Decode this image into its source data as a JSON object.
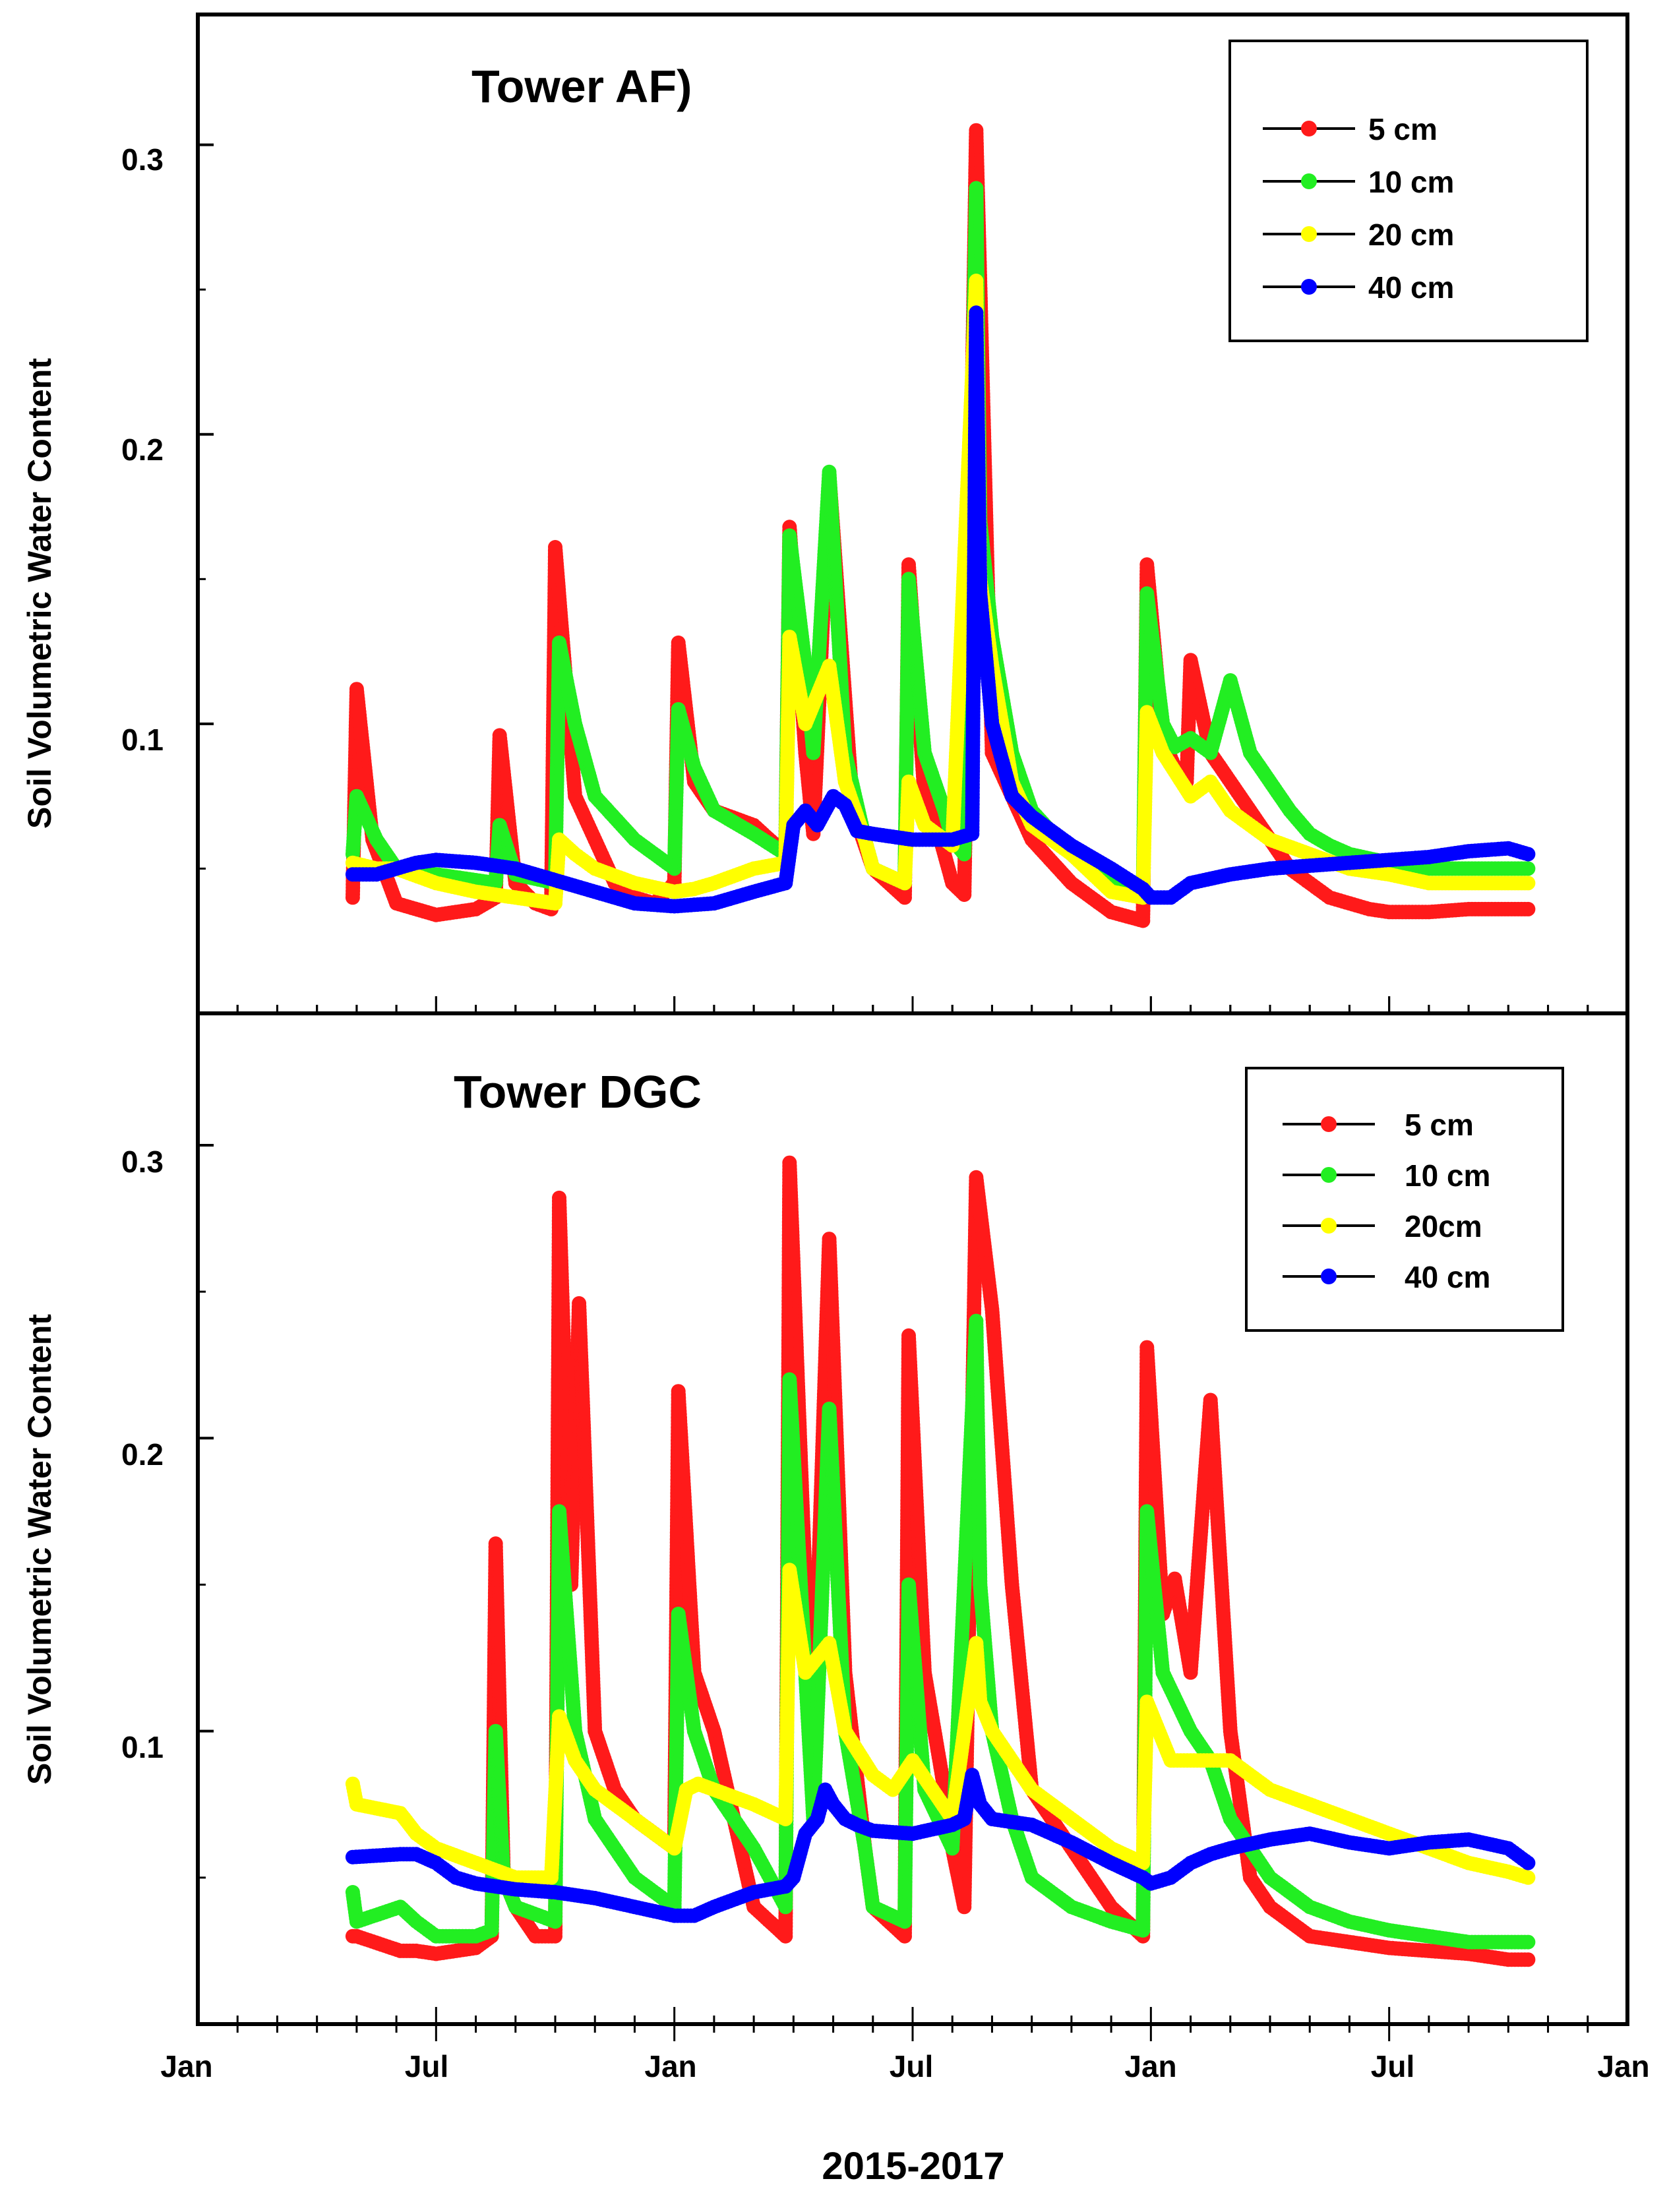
{
  "x_title": "2015-2017",
  "x_tick_labels": [
    "Jan",
    "Jul",
    "Jan",
    "Jul",
    "Jan",
    "Jul",
    "Jan"
  ],
  "colors": {
    "5cm": "#ff1a1a",
    "10cm": "#22ee22",
    "20cm": "#ffff00",
    "40cm": "#0000ff"
  },
  "chart_data": [
    {
      "type": "line",
      "title": "Tower AF)",
      "ylabel": "Soil Volumetric Water Content",
      "ylim": [
        0.0,
        0.345
      ],
      "yticks": [
        0.1,
        0.2,
        0.3
      ],
      "ytick_labels": [
        "0.1",
        "0.2",
        "0.3"
      ],
      "xlim": [
        0,
        36
      ],
      "xticks": [
        0,
        6,
        12,
        18,
        24,
        30,
        36
      ],
      "xtick_labels": [
        "Jan",
        "Jul",
        "Jan",
        "Jul",
        "Jan",
        "Jul",
        "Jan"
      ],
      "legend": {
        "position": "top-right",
        "entries": [
          "5 cm",
          "10 cm",
          "20 cm",
          "40 cm"
        ]
      },
      "series": [
        {
          "name": "5 cm",
          "color": "#ff1a1a",
          "x": [
            3.9,
            4.0,
            4.4,
            5.0,
            6.0,
            7.0,
            7.5,
            7.6,
            8.0,
            8.5,
            8.9,
            9.0,
            9.5,
            10.0,
            10.5,
            11.0,
            11.5,
            12.0,
            12.1,
            12.5,
            13.0,
            14.0,
            14.8,
            14.9,
            15.3,
            15.5,
            15.9,
            16.5,
            17.0,
            17.8,
            17.9,
            18.3,
            18.7,
            19.0,
            19.3,
            19.6,
            20.0,
            21.0,
            22.0,
            23.0,
            23.8,
            23.9,
            24.3,
            24.6,
            24.9,
            25.0,
            25.5,
            26.0,
            26.5,
            27.0,
            27.5,
            28.0,
            28.5,
            29.0,
            29.5,
            30.0,
            31.0,
            32.0,
            33.0,
            33.5
          ],
          "y": [
            0.04,
            0.112,
            0.06,
            0.038,
            0.034,
            0.036,
            0.04,
            0.096,
            0.045,
            0.038,
            0.036,
            0.161,
            0.075,
            0.06,
            0.045,
            0.04,
            0.038,
            0.045,
            0.128,
            0.08,
            0.07,
            0.065,
            0.055,
            0.168,
            0.09,
            0.062,
            0.186,
            0.07,
            0.05,
            0.04,
            0.155,
            0.075,
            0.06,
            0.045,
            0.041,
            0.305,
            0.09,
            0.06,
            0.045,
            0.035,
            0.032,
            0.155,
            0.095,
            0.085,
            0.08,
            0.122,
            0.09,
            0.08,
            0.07,
            0.06,
            0.05,
            0.045,
            0.04,
            0.038,
            0.036,
            0.035,
            0.035,
            0.036,
            0.036,
            0.036
          ]
        },
        {
          "name": "10 cm",
          "color": "#22ee22",
          "x": [
            3.9,
            4.0,
            4.5,
            5.0,
            6.0,
            7.0,
            7.5,
            7.6,
            8.0,
            9.0,
            9.1,
            9.5,
            10.0,
            11.0,
            12.0,
            12.1,
            12.5,
            13.0,
            14.0,
            14.8,
            14.9,
            15.3,
            15.5,
            15.9,
            16.3,
            16.8,
            17.0,
            17.8,
            17.9,
            18.3,
            18.8,
            19.0,
            19.3,
            19.6,
            19.7,
            20.0,
            20.5,
            21.0,
            22.0,
            23.0,
            23.8,
            23.9,
            24.3,
            24.6,
            25.0,
            25.5,
            26.0,
            26.5,
            27.0,
            27.5,
            28.0,
            28.5,
            29.0,
            30.0,
            31.0,
            32.0,
            33.0,
            33.5
          ],
          "y": [
            0.055,
            0.075,
            0.06,
            0.05,
            0.048,
            0.046,
            0.045,
            0.065,
            0.048,
            0.045,
            0.128,
            0.1,
            0.075,
            0.06,
            0.05,
            0.105,
            0.085,
            0.07,
            0.062,
            0.055,
            0.165,
            0.12,
            0.09,
            0.187,
            0.09,
            0.06,
            0.05,
            0.045,
            0.15,
            0.09,
            0.07,
            0.06,
            0.055,
            0.285,
            0.17,
            0.13,
            0.09,
            0.07,
            0.055,
            0.045,
            0.04,
            0.145,
            0.1,
            0.092,
            0.095,
            0.09,
            0.115,
            0.09,
            0.08,
            0.07,
            0.062,
            0.058,
            0.055,
            0.052,
            0.05,
            0.05,
            0.05,
            0.05
          ]
        },
        {
          "name": "20 cm",
          "color": "#ffff00",
          "x": [
            3.9,
            4.5,
            5.0,
            6.0,
            7.0,
            8.0,
            9.0,
            9.1,
            9.5,
            10.0,
            11.0,
            12.0,
            12.5,
            13.0,
            14.0,
            14.8,
            14.9,
            15.3,
            15.9,
            16.3,
            16.8,
            17.0,
            17.8,
            17.9,
            18.3,
            19.0,
            19.6,
            19.7,
            20.0,
            20.5,
            21.0,
            22.0,
            23.0,
            23.8,
            23.9,
            24.3,
            25.0,
            25.5,
            26.0,
            26.5,
            27.0,
            28.0,
            29.0,
            30.0,
            31.0,
            32.0,
            33.0,
            33.5
          ],
          "y": [
            0.052,
            0.05,
            0.05,
            0.045,
            0.042,
            0.04,
            0.038,
            0.06,
            0.055,
            0.05,
            0.045,
            0.042,
            0.043,
            0.045,
            0.05,
            0.052,
            0.13,
            0.1,
            0.12,
            0.08,
            0.06,
            0.05,
            0.045,
            0.08,
            0.065,
            0.058,
            0.253,
            0.15,
            0.12,
            0.08,
            0.065,
            0.055,
            0.042,
            0.04,
            0.104,
            0.09,
            0.075,
            0.08,
            0.07,
            0.065,
            0.06,
            0.055,
            0.05,
            0.048,
            0.045,
            0.045,
            0.045,
            0.045
          ]
        },
        {
          "name": "40 cm",
          "color": "#0000ff",
          "x": [
            3.9,
            4.5,
            5.0,
            5.5,
            6.0,
            7.0,
            8.0,
            9.0,
            10.0,
            11.0,
            12.0,
            13.0,
            14.0,
            14.8,
            15.0,
            15.3,
            15.6,
            16.0,
            16.3,
            16.6,
            17.0,
            18.0,
            19.0,
            19.5,
            19.6,
            19.7,
            20.0,
            20.5,
            21.0,
            22.0,
            23.0,
            23.8,
            24.0,
            24.5,
            25.0,
            26.0,
            27.0,
            28.0,
            29.0,
            30.0,
            31.0,
            32.0,
            33.0,
            33.5
          ],
          "y": [
            0.048,
            0.048,
            0.05,
            0.052,
            0.053,
            0.052,
            0.05,
            0.046,
            0.042,
            0.038,
            0.037,
            0.038,
            0.042,
            0.045,
            0.065,
            0.07,
            0.065,
            0.075,
            0.072,
            0.063,
            0.062,
            0.06,
            0.06,
            0.062,
            0.242,
            0.145,
            0.1,
            0.075,
            0.068,
            0.058,
            0.05,
            0.043,
            0.04,
            0.04,
            0.045,
            0.048,
            0.05,
            0.051,
            0.052,
            0.053,
            0.054,
            0.056,
            0.057,
            0.055
          ]
        }
      ]
    },
    {
      "type": "line",
      "title": "Tower DGC",
      "ylabel": "Soil Volumetric Water Content",
      "ylim": [
        0.0,
        0.345
      ],
      "yticks": [
        0.1,
        0.2,
        0.3
      ],
      "ytick_labels": [
        "0.1",
        "0.2",
        "0.3"
      ],
      "xlim": [
        0,
        36
      ],
      "xticks": [
        0,
        6,
        12,
        18,
        24,
        30,
        36
      ],
      "xtick_labels": [
        "Jan",
        "Jul",
        "Jan",
        "Jul",
        "Jan",
        "Jul",
        "Jan"
      ],
      "legend": {
        "position": "top-right",
        "entries": [
          "5 cm",
          "10 cm",
          "20cm",
          "40 cm"
        ]
      },
      "series": [
        {
          "name": "5 cm",
          "color": "#ff1a1a",
          "x": [
            3.9,
            4.0,
            5.1,
            5.5,
            6.0,
            7.0,
            7.4,
            7.5,
            7.7,
            8.0,
            8.5,
            9.0,
            9.1,
            9.4,
            9.6,
            10.0,
            10.5,
            11.0,
            11.5,
            12.0,
            12.1,
            12.5,
            13.0,
            14.0,
            14.8,
            14.9,
            15.3,
            15.5,
            15.9,
            16.3,
            16.8,
            17.0,
            17.8,
            17.9,
            18.3,
            18.8,
            19.0,
            19.3,
            19.6,
            20.0,
            20.5,
            21.0,
            22.0,
            23.0,
            23.8,
            23.9,
            24.3,
            24.6,
            25.0,
            25.5,
            26.0,
            26.5,
            27.0,
            28.0,
            29.0,
            30.0,
            31.0,
            32.0,
            33.0,
            33.5
          ],
          "y": [
            0.03,
            0.03,
            0.025,
            0.025,
            0.024,
            0.026,
            0.03,
            0.164,
            0.05,
            0.04,
            0.03,
            0.03,
            0.282,
            0.15,
            0.246,
            0.1,
            0.08,
            0.07,
            0.065,
            0.06,
            0.216,
            0.12,
            0.1,
            0.04,
            0.03,
            0.294,
            0.15,
            0.1,
            0.268,
            0.12,
            0.06,
            0.04,
            0.03,
            0.235,
            0.12,
            0.08,
            0.06,
            0.04,
            0.289,
            0.244,
            0.15,
            0.08,
            0.06,
            0.04,
            0.03,
            0.231,
            0.14,
            0.152,
            0.12,
            0.213,
            0.1,
            0.05,
            0.04,
            0.03,
            0.028,
            0.026,
            0.025,
            0.024,
            0.022,
            0.022
          ]
        },
        {
          "name": "10 cm",
          "color": "#22ee22",
          "x": [
            3.9,
            4.0,
            5.1,
            5.5,
            6.0,
            7.0,
            7.4,
            7.5,
            7.7,
            8.0,
            9.0,
            9.1,
            9.5,
            10.0,
            10.5,
            11.0,
            12.0,
            12.1,
            12.5,
            13.0,
            14.0,
            14.8,
            14.9,
            15.3,
            15.5,
            15.9,
            16.3,
            16.8,
            17.0,
            17.8,
            17.9,
            18.3,
            19.0,
            19.6,
            19.7,
            20.0,
            20.5,
            21.0,
            22.0,
            23.0,
            23.8,
            23.9,
            24.3,
            25.0,
            25.5,
            26.0,
            27.0,
            28.0,
            29.0,
            30.0,
            31.0,
            32.0,
            33.0,
            33.5
          ],
          "y": [
            0.045,
            0.035,
            0.04,
            0.035,
            0.03,
            0.03,
            0.032,
            0.1,
            0.05,
            0.04,
            0.035,
            0.175,
            0.1,
            0.07,
            0.06,
            0.05,
            0.04,
            0.14,
            0.1,
            0.08,
            0.06,
            0.04,
            0.22,
            0.12,
            0.07,
            0.21,
            0.1,
            0.06,
            0.04,
            0.035,
            0.15,
            0.08,
            0.06,
            0.24,
            0.15,
            0.1,
            0.07,
            0.05,
            0.04,
            0.035,
            0.032,
            0.175,
            0.12,
            0.1,
            0.09,
            0.07,
            0.05,
            0.04,
            0.035,
            0.032,
            0.03,
            0.028,
            0.028,
            0.028
          ]
        },
        {
          "name": "20cm",
          "color": "#ffff00",
          "x": [
            3.9,
            4.0,
            5.1,
            5.5,
            6.0,
            7.0,
            8.0,
            8.9,
            9.1,
            9.5,
            10.0,
            11.0,
            12.0,
            12.3,
            12.6,
            13.0,
            14.0,
            14.8,
            14.9,
            15.3,
            15.9,
            16.3,
            17.0,
            17.5,
            18.0,
            18.5,
            19.0,
            19.6,
            19.7,
            20.0,
            21.0,
            22.0,
            23.0,
            23.8,
            23.9,
            24.5,
            25.0,
            26.0,
            27.0,
            28.0,
            29.0,
            30.0,
            31.0,
            32.0,
            33.0,
            33.5
          ],
          "y": [
            0.082,
            0.075,
            0.072,
            0.065,
            0.06,
            0.055,
            0.05,
            0.05,
            0.105,
            0.09,
            0.08,
            0.07,
            0.06,
            0.08,
            0.082,
            0.08,
            0.075,
            0.07,
            0.155,
            0.12,
            0.13,
            0.1,
            0.085,
            0.08,
            0.09,
            0.08,
            0.07,
            0.13,
            0.11,
            0.1,
            0.08,
            0.07,
            0.06,
            0.055,
            0.11,
            0.09,
            0.09,
            0.09,
            0.08,
            0.075,
            0.07,
            0.065,
            0.06,
            0.055,
            0.052,
            0.05
          ]
        },
        {
          "name": "40 cm",
          "color": "#0000ff",
          "x": [
            3.9,
            5.1,
            5.5,
            6.0,
            6.5,
            7.0,
            8.0,
            9.0,
            10.0,
            11.0,
            12.0,
            12.5,
            13.0,
            14.0,
            14.8,
            15.0,
            15.3,
            15.6,
            15.8,
            16.0,
            16.3,
            16.6,
            17.0,
            18.0,
            19.0,
            19.3,
            19.5,
            19.7,
            20.0,
            21.0,
            22.0,
            23.0,
            23.8,
            24.0,
            24.5,
            25.0,
            25.5,
            26.0,
            27.0,
            28.0,
            29.0,
            30.0,
            31.0,
            32.0,
            33.0,
            33.5
          ],
          "y": [
            0.057,
            0.058,
            0.058,
            0.055,
            0.05,
            0.048,
            0.046,
            0.045,
            0.043,
            0.04,
            0.037,
            0.037,
            0.04,
            0.045,
            0.047,
            0.05,
            0.065,
            0.07,
            0.08,
            0.075,
            0.07,
            0.068,
            0.066,
            0.065,
            0.068,
            0.07,
            0.085,
            0.075,
            0.07,
            0.068,
            0.062,
            0.055,
            0.05,
            0.048,
            0.05,
            0.055,
            0.058,
            0.06,
            0.063,
            0.065,
            0.062,
            0.06,
            0.062,
            0.063,
            0.06,
            0.055
          ]
        }
      ]
    }
  ]
}
